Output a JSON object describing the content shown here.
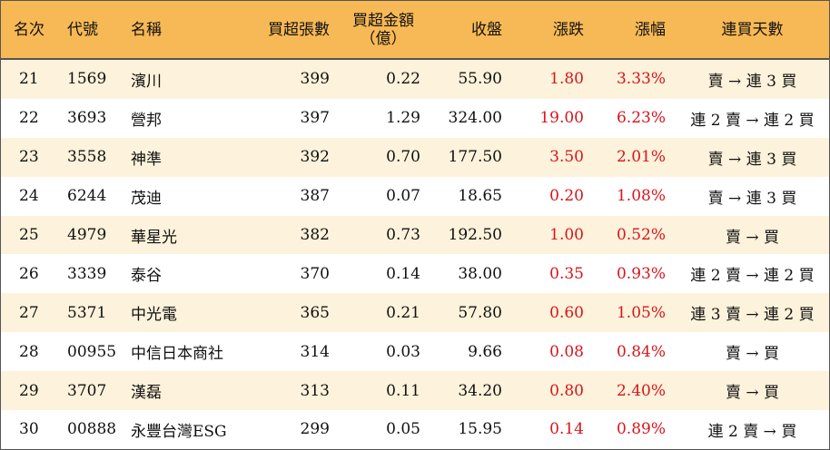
{
  "header": {
    "rank": "名次",
    "code": "代號",
    "name": "名稱",
    "net_buy_lots": "買超張數",
    "net_buy_amount_line1": "買超金額",
    "net_buy_amount_line2": "（億）",
    "close": "收盤",
    "change": "漲跌",
    "change_pct": "漲幅",
    "consecutive_days": "連買天數"
  },
  "colors": {
    "header_bg": "#f7b955",
    "odd_row_bg": "#fdf2db",
    "even_row_bg": "#ffffff",
    "positive": "#d8141c",
    "border": "#555555"
  },
  "rows": [
    {
      "rank": "21",
      "code": "1569",
      "name": "濱川",
      "lots": "399",
      "amount": "0.22",
      "close": "55.90",
      "change": "1.80",
      "pct": "3.33%",
      "days": "賣 → 連 3 買"
    },
    {
      "rank": "22",
      "code": "3693",
      "name": "營邦",
      "lots": "397",
      "amount": "1.29",
      "close": "324.00",
      "change": "19.00",
      "pct": "6.23%",
      "days": "連 2 賣 → 連 2 買"
    },
    {
      "rank": "23",
      "code": "3558",
      "name": "神準",
      "lots": "392",
      "amount": "0.70",
      "close": "177.50",
      "change": "3.50",
      "pct": "2.01%",
      "days": "賣 → 連 3 買"
    },
    {
      "rank": "24",
      "code": "6244",
      "name": "茂迪",
      "lots": "387",
      "amount": "0.07",
      "close": "18.65",
      "change": "0.20",
      "pct": "1.08%",
      "days": "賣 → 連 3 買"
    },
    {
      "rank": "25",
      "code": "4979",
      "name": "華星光",
      "lots": "382",
      "amount": "0.73",
      "close": "192.50",
      "change": "1.00",
      "pct": "0.52%",
      "days": "賣 → 買"
    },
    {
      "rank": "26",
      "code": "3339",
      "name": "泰谷",
      "lots": "370",
      "amount": "0.14",
      "close": "38.00",
      "change": "0.35",
      "pct": "0.93%",
      "days": "連 2 賣 → 連 2 買"
    },
    {
      "rank": "27",
      "code": "5371",
      "name": "中光電",
      "lots": "365",
      "amount": "0.21",
      "close": "57.80",
      "change": "0.60",
      "pct": "1.05%",
      "days": "連 3 賣 → 連 2 買"
    },
    {
      "rank": "28",
      "code": "00955",
      "name": "中信日本商社",
      "lots": "314",
      "amount": "0.03",
      "close": "9.66",
      "change": "0.08",
      "pct": "0.84%",
      "days": "賣 → 買"
    },
    {
      "rank": "29",
      "code": "3707",
      "name": "漢磊",
      "lots": "313",
      "amount": "0.11",
      "close": "34.20",
      "change": "0.80",
      "pct": "2.40%",
      "days": "賣 → 買"
    },
    {
      "rank": "30",
      "code": "00888",
      "name": "永豐台灣ESG",
      "lots": "299",
      "amount": "0.05",
      "close": "15.95",
      "change": "0.14",
      "pct": "0.89%",
      "days": "連 2 賣 → 買"
    }
  ]
}
